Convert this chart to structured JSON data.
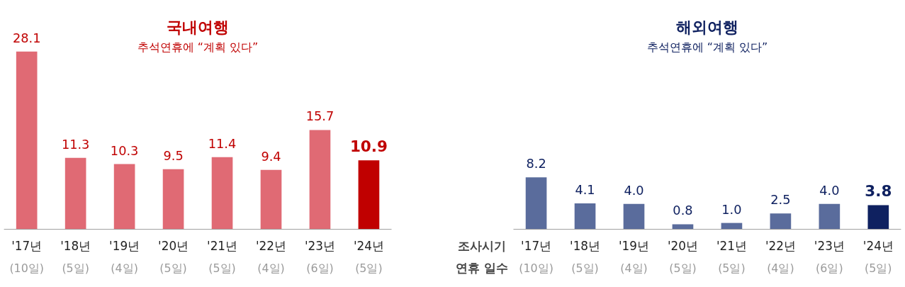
{
  "chart_data": [
    {
      "type": "bar",
      "title": "국내여행",
      "subtitle": "추석연휴에 “계획 있다”",
      "categories": [
        "'17년\n(10일)",
        "'18년\n(5일)",
        "'19년\n(4일)",
        "'20년\n(5일)",
        "'21년\n(5일)",
        "'22년\n(4일)",
        "'23년\n(6일)",
        "'24년\n(5일)"
      ],
      "values": [
        28.1,
        11.3,
        10.3,
        9.5,
        11.4,
        9.4,
        15.7,
        10.9
      ],
      "colors": [
        "#e06a74",
        "#e06a74",
        "#e06a74",
        "#e06a74",
        "#e06a74",
        "#e06a74",
        "#e06a74",
        "#c00000"
      ],
      "data_labels": true
    },
    {
      "type": "bar",
      "title": "해외여행",
      "subtitle": "추석연휴에 “계획 있다”",
      "categories": [
        "'17년\n(10일)",
        "'18년\n(5일)",
        "'19년\n(4일)",
        "'20년\n(5일)",
        "'21년\n(5일)",
        "'22년\n(4일)",
        "'23년\n(6일)",
        "'24년\n(5일)"
      ],
      "values": [
        8.2,
        4.1,
        4.0,
        0.8,
        1.0,
        2.5,
        4.0,
        3.8
      ],
      "colors": [
        "#5a6c9c",
        "#5a6c9c",
        "#5a6c9c",
        "#5a6c9c",
        "#5a6c9c",
        "#5a6c9c",
        "#5a6c9c",
        "#0f2160"
      ],
      "value_labels": [
        "8.2",
        "4.1",
        "4.0",
        "0.8",
        "1.0",
        "2.5",
        "4.0",
        "3.8"
      ],
      "annotations": [
        "조사시기",
        "연휴 일수"
      ]
    }
  ]
}
